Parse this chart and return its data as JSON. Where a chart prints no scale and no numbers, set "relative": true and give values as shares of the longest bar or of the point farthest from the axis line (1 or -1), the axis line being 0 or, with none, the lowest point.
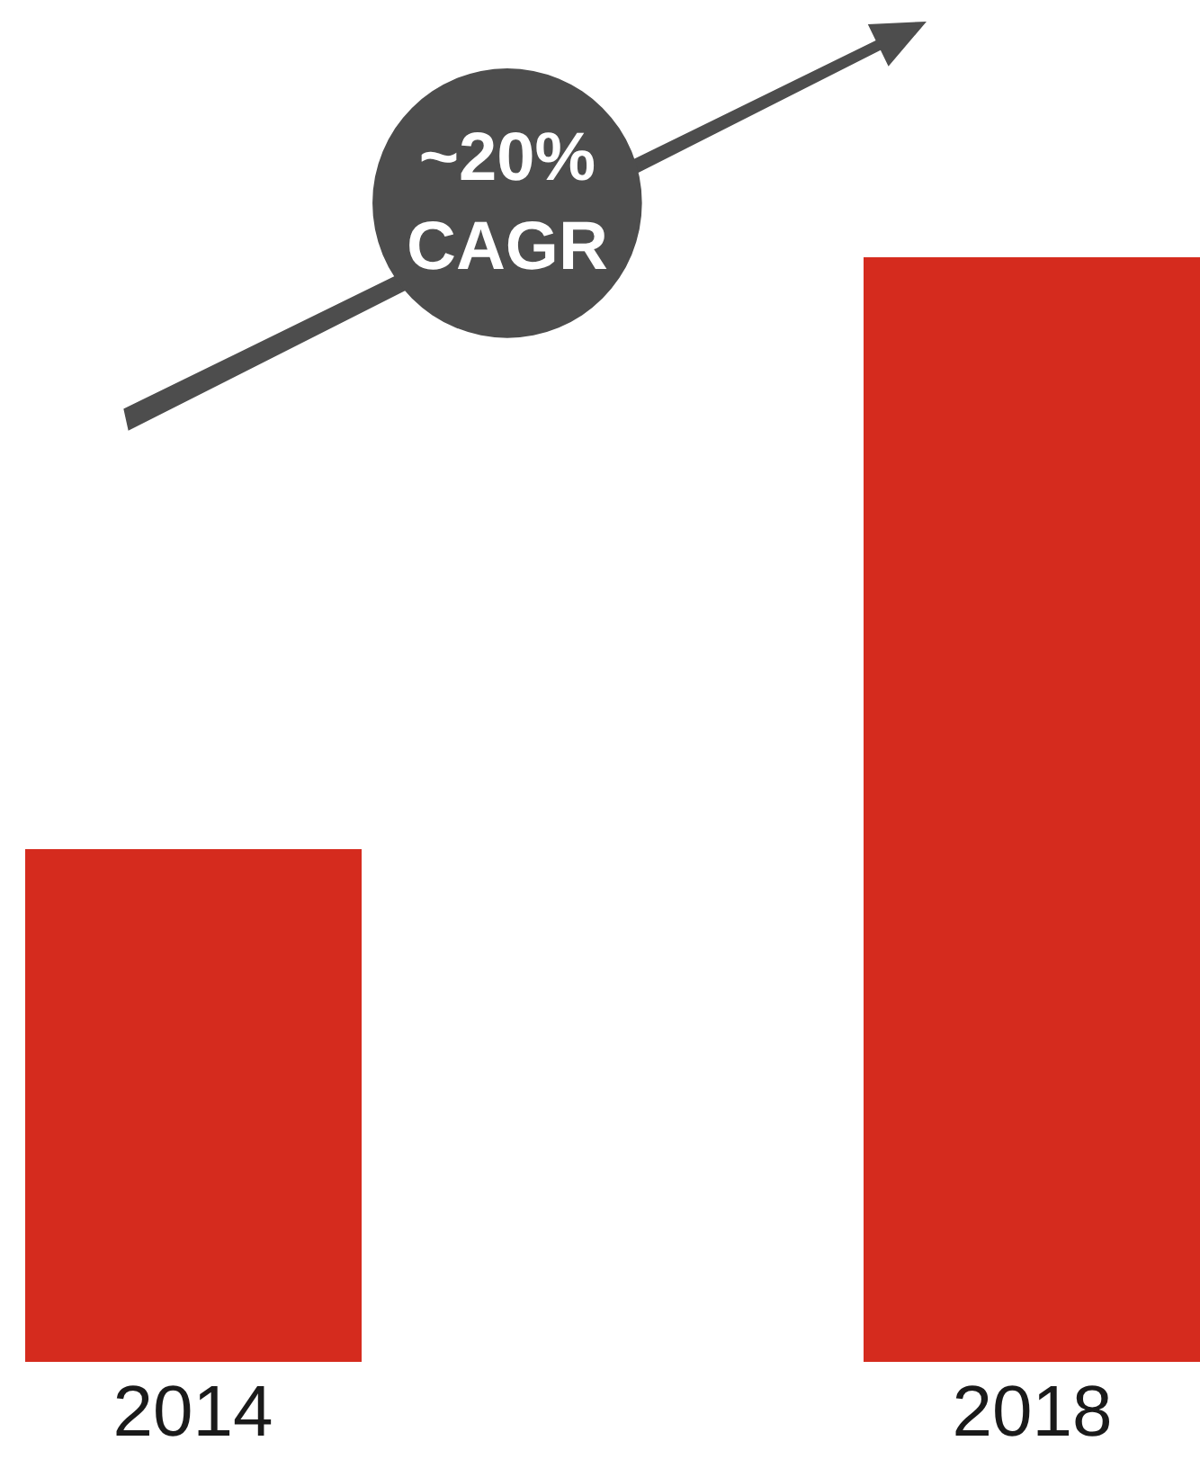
{
  "chart_data": {
    "type": "bar",
    "relative": true,
    "categories": [
      "2014",
      "2018"
    ],
    "values": [
      0.464,
      1
    ],
    "color": "#d52b1e",
    "annotations": [
      "~20%\nCAGR"
    ]
  }
}
